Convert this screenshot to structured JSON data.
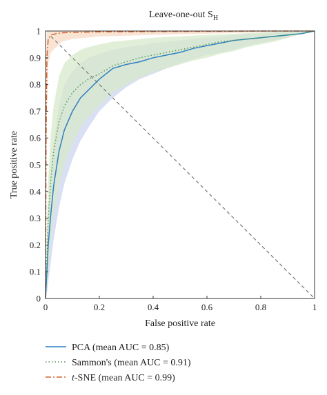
{
  "chart_data": {
    "type": "line",
    "title": "Leave-one-out S",
    "title_subscript": "H",
    "xlabel": "False positive rate",
    "ylabel": "True positive rate",
    "xlim": [
      0,
      1
    ],
    "ylim": [
      0,
      1
    ],
    "x_ticks": [
      "0",
      "0.2",
      "0.4",
      "0.6",
      "0.8",
      "1"
    ],
    "y_ticks": [
      "0",
      "0.1",
      "0.2",
      "0.3",
      "0.4",
      "0.5",
      "0.6",
      "0.7",
      "0.8",
      "0.9",
      "1"
    ],
    "grid": false,
    "legend_position": "below",
    "series": [
      {
        "name": "PCA (mean AUC = 0.85)",
        "color": "#2f7fbf",
        "band_color": "#c9d3ef",
        "line_style": "solid",
        "x": [
          0,
          0.005,
          0.01,
          0.02,
          0.03,
          0.05,
          0.07,
          0.1,
          0.13,
          0.16,
          0.2,
          0.25,
          0.3,
          0.35,
          0.4,
          0.45,
          0.5,
          0.55,
          0.6,
          0.65,
          0.7,
          0.75,
          0.8,
          0.85,
          0.9,
          0.95,
          1
        ],
        "y": [
          0,
          0.1,
          0.2,
          0.32,
          0.42,
          0.55,
          0.63,
          0.7,
          0.75,
          0.78,
          0.82,
          0.86,
          0.875,
          0.885,
          0.9,
          0.91,
          0.92,
          0.935,
          0.945,
          0.955,
          0.965,
          0.97,
          0.975,
          0.98,
          0.985,
          0.99,
          1.0
        ],
        "band_upper": [
          0,
          0.2,
          0.33,
          0.48,
          0.58,
          0.72,
          0.8,
          0.85,
          0.88,
          0.9,
          0.915,
          0.93,
          0.94,
          0.945,
          0.955,
          0.96,
          0.965,
          0.97,
          0.975,
          0.98,
          0.985,
          0.99,
          0.99,
          0.995,
          0.995,
          1.0,
          1.0
        ],
        "band_lower": [
          0,
          0.02,
          0.06,
          0.14,
          0.22,
          0.34,
          0.43,
          0.52,
          0.59,
          0.64,
          0.7,
          0.75,
          0.79,
          0.82,
          0.84,
          0.86,
          0.88,
          0.895,
          0.91,
          0.92,
          0.93,
          0.945,
          0.955,
          0.965,
          0.975,
          0.99,
          1.0
        ]
      },
      {
        "name": "Sammon's (mean AUC = 0.91)",
        "color": "#4e9a4e",
        "band_color": "#d6e8c8",
        "line_style": "dotted",
        "x": [
          0,
          0.005,
          0.01,
          0.02,
          0.03,
          0.05,
          0.07,
          0.1,
          0.13,
          0.16,
          0.2,
          0.25,
          0.3,
          0.35,
          0.4,
          0.45,
          0.5,
          0.55,
          0.6,
          0.65,
          0.7,
          0.75,
          0.8,
          0.85,
          0.9,
          0.95,
          1
        ],
        "y": [
          0,
          0.15,
          0.3,
          0.45,
          0.55,
          0.66,
          0.72,
          0.77,
          0.8,
          0.82,
          0.84,
          0.87,
          0.885,
          0.9,
          0.91,
          0.92,
          0.93,
          0.94,
          0.95,
          0.96,
          0.965,
          0.97,
          0.975,
          0.98,
          0.985,
          0.99,
          1.0
        ],
        "band_upper": [
          0,
          0.25,
          0.45,
          0.62,
          0.72,
          0.83,
          0.88,
          0.91,
          0.93,
          0.94,
          0.95,
          0.96,
          0.965,
          0.97,
          0.975,
          0.978,
          0.98,
          0.983,
          0.985,
          0.988,
          0.99,
          0.992,
          0.994,
          0.996,
          0.998,
          1.0,
          1.0
        ],
        "band_lower": [
          0,
          0.05,
          0.12,
          0.22,
          0.3,
          0.42,
          0.5,
          0.58,
          0.64,
          0.68,
          0.72,
          0.77,
          0.8,
          0.825,
          0.845,
          0.86,
          0.875,
          0.89,
          0.9,
          0.915,
          0.925,
          0.94,
          0.95,
          0.96,
          0.975,
          0.99,
          1.0
        ]
      },
      {
        "name": "t-SNE (mean AUC = 0.99)",
        "color": "#d4622a",
        "band_color": "#f7d9c2",
        "line_style": "dashdot",
        "x": [
          0,
          0.002,
          0.005,
          0.01,
          0.02,
          0.04,
          0.06,
          0.1,
          0.2,
          0.4,
          0.6,
          0.8,
          1
        ],
        "y": [
          0,
          0.6,
          0.9,
          0.97,
          0.985,
          0.99,
          0.993,
          0.995,
          0.997,
          0.998,
          0.999,
          1.0,
          1.0
        ],
        "band_upper": [
          0,
          0.9,
          1.0,
          1.0,
          1.0,
          1.0,
          1.0,
          1.0,
          1.0,
          1.0,
          1.0,
          1.0,
          1.0
        ],
        "band_lower": [
          0,
          0.3,
          0.7,
          0.88,
          0.92,
          0.94,
          0.96,
          0.97,
          0.98,
          0.985,
          0.99,
          0.995,
          1.0
        ]
      }
    ],
    "chance_line": {
      "x": [
        0.02,
        1
      ],
      "y": [
        0.98,
        0
      ],
      "color": "#777777",
      "line_style": "dashed"
    }
  },
  "legend": {
    "items": [
      {
        "prefix": "",
        "italic": "",
        "text": "PCA (mean AUC = 0.85)"
      },
      {
        "prefix": "",
        "italic": "",
        "text": "Sammon's (mean AUC = 0.91)"
      },
      {
        "prefix": "",
        "italic": "t",
        "text": "-SNE (mean AUC = 0.99)"
      }
    ]
  }
}
